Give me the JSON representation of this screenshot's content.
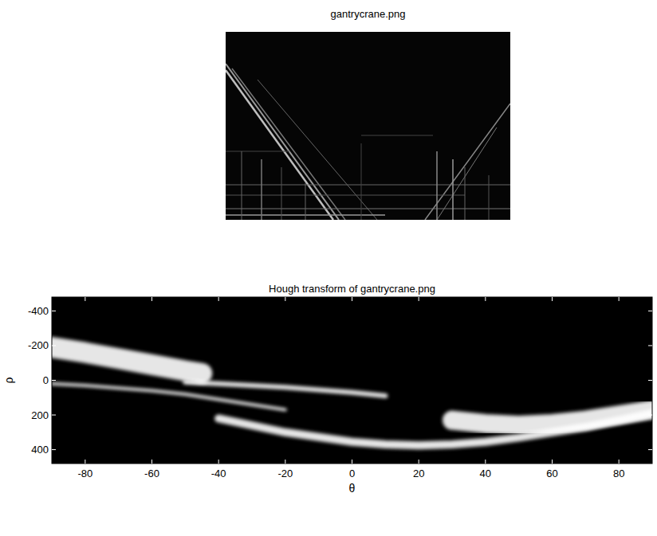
{
  "chart_data": [
    {
      "type": "image",
      "title": "gantrycrane.png"
    },
    {
      "type": "line",
      "title": "Hough transform of gantrycrane.png",
      "x_label": "θ",
      "y_label": "ρ",
      "xlim": [
        -90,
        90
      ],
      "ylim": [
        -480,
        480
      ],
      "xticks": [
        -80,
        -60,
        -40,
        -20,
        0,
        20,
        40,
        60,
        80
      ],
      "yticks": [
        -400,
        -200,
        0,
        200,
        400
      ],
      "series": [
        {
          "color": "#ffffff",
          "x": [
            -90,
            -80,
            -70,
            -60,
            -50,
            -45
          ],
          "values": [
            -190,
            -160,
            -125,
            -90,
            -55,
            -40
          ]
        },
        {
          "color": "#ffffff",
          "x": [
            -50,
            -40,
            -30,
            -20,
            -10,
            0,
            10
          ],
          "values": [
            10,
            20,
            30,
            40,
            55,
            70,
            90
          ]
        },
        {
          "color": "#ffffff",
          "x": [
            -90,
            -80,
            -70,
            -60,
            -50,
            -40,
            -30,
            -20
          ],
          "values": [
            20,
            30,
            45,
            60,
            80,
            110,
            140,
            170
          ]
        },
        {
          "color": "#ffffff",
          "x": [
            -40,
            -20,
            0,
            10,
            20,
            30,
            40,
            50,
            60,
            70,
            80,
            90
          ],
          "values": [
            220,
            300,
            355,
            370,
            375,
            370,
            355,
            330,
            300,
            270,
            230,
            190
          ]
        },
        {
          "color": "#ffffff",
          "x": [
            30,
            40,
            50,
            60,
            70,
            80,
            90
          ],
          "values": [
            230,
            250,
            260,
            250,
            230,
            200,
            170
          ]
        }
      ]
    }
  ]
}
